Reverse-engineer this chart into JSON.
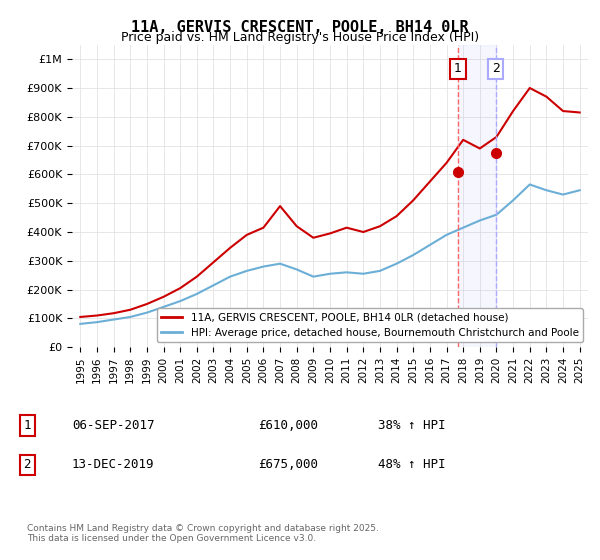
{
  "title": "11A, GERVIS CRESCENT, POOLE, BH14 0LR",
  "subtitle": "Price paid vs. HM Land Registry's House Price Index (HPI)",
  "legend_line1": "11A, GERVIS CRESCENT, POOLE, BH14 0LR (detached house)",
  "legend_line2": "HPI: Average price, detached house, Bournemouth Christchurch and Poole",
  "sale1_label": "1",
  "sale1_date": "06-SEP-2017",
  "sale1_price": "£610,000",
  "sale1_hpi": "38% ↑ HPI",
  "sale1_year": 2017.68,
  "sale1_value": 610000,
  "sale2_label": "2",
  "sale2_date": "13-DEC-2019",
  "sale2_price": "£675,000",
  "sale2_hpi": "48% ↑ HPI",
  "sale2_year": 2019.95,
  "sale2_value": 675000,
  "footer": "Contains HM Land Registry data © Crown copyright and database right 2025.\nThis data is licensed under the Open Government Licence v3.0.",
  "hpi_color": "#6baed6",
  "price_color": "#cc0000",
  "sale_marker_color": "#cc0000",
  "background_color": "#ffffff",
  "grid_color": "#dddddd",
  "ylim": [
    0,
    1050000
  ],
  "xlim": [
    1994.5,
    2025.5
  ],
  "yticks": [
    0,
    100000,
    200000,
    300000,
    400000,
    500000,
    600000,
    700000,
    800000,
    900000,
    1000000
  ],
  "ytick_labels": [
    "£0",
    "£100K",
    "£200K",
    "£300K",
    "£400K",
    "£500K",
    "£600K",
    "£700K",
    "£800K",
    "£900K",
    "£1M"
  ],
  "xticks": [
    1995,
    1996,
    1997,
    1998,
    1999,
    2000,
    2001,
    2002,
    2003,
    2004,
    2005,
    2006,
    2007,
    2008,
    2009,
    2010,
    2011,
    2012,
    2013,
    2014,
    2015,
    2016,
    2017,
    2018,
    2019,
    2020,
    2021,
    2022,
    2023,
    2024,
    2025
  ],
  "hpi_years": [
    1995,
    1996,
    1997,
    1998,
    1999,
    2000,
    2001,
    2002,
    2003,
    2004,
    2005,
    2006,
    2007,
    2008,
    2009,
    2010,
    2011,
    2012,
    2013,
    2014,
    2015,
    2016,
    2017,
    2018,
    2019,
    2020,
    2021,
    2022,
    2023,
    2024,
    2025
  ],
  "hpi_values": [
    81000,
    87000,
    96000,
    105000,
    120000,
    140000,
    160000,
    185000,
    215000,
    245000,
    265000,
    280000,
    290000,
    270000,
    245000,
    255000,
    260000,
    255000,
    265000,
    290000,
    320000,
    355000,
    390000,
    415000,
    440000,
    460000,
    510000,
    565000,
    545000,
    530000,
    545000
  ],
  "price_years": [
    1995,
    1996,
    1997,
    1998,
    1999,
    2000,
    2001,
    2002,
    2003,
    2004,
    2005,
    2006,
    2007,
    2008,
    2009,
    2010,
    2011,
    2012,
    2013,
    2014,
    2015,
    2016,
    2017,
    2018,
    2019,
    2020,
    2021,
    2022,
    2023,
    2024,
    2025
  ],
  "price_values": [
    105000,
    110000,
    118000,
    130000,
    150000,
    175000,
    205000,
    245000,
    295000,
    345000,
    390000,
    415000,
    490000,
    420000,
    380000,
    395000,
    415000,
    400000,
    420000,
    455000,
    510000,
    575000,
    640000,
    720000,
    690000,
    730000,
    820000,
    900000,
    870000,
    820000,
    815000
  ]
}
